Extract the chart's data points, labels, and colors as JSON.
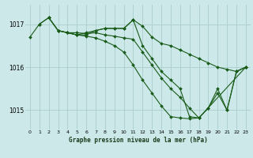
{
  "title": "Graphe pression niveau de la mer (hPa)",
  "bg_color": "#cce8e8",
  "grid_color": "#aacccc",
  "line_color": "#1a5c1a",
  "marker_color": "#1a5c1a",
  "xlim": [
    -0.5,
    23.5
  ],
  "ylim": [
    1014.55,
    1017.45
  ],
  "yticks": [
    1015,
    1016,
    1017
  ],
  "xticks": [
    0,
    1,
    2,
    3,
    4,
    5,
    6,
    7,
    8,
    9,
    10,
    11,
    12,
    13,
    14,
    15,
    16,
    17,
    18,
    19,
    20,
    21,
    22,
    23
  ],
  "lines": [
    {
      "x": [
        0,
        1,
        2,
        3,
        4,
        5,
        6,
        7,
        8,
        9,
        10,
        11,
        12,
        13,
        14,
        15,
        16,
        17,
        18,
        19,
        20,
        21,
        22,
        23
      ],
      "y": [
        1016.7,
        1017.0,
        1017.15,
        1016.85,
        1016.8,
        1016.75,
        1016.75,
        1016.85,
        1016.9,
        1016.9,
        1016.9,
        1017.1,
        1016.95,
        1016.7,
        1016.55,
        1016.5,
        1016.4,
        1016.3,
        1016.2,
        1016.1,
        1016.0,
        1015.95,
        1015.9,
        1016.0
      ]
    },
    {
      "x": [
        1,
        2,
        3,
        4,
        5,
        6,
        7,
        8,
        9,
        10,
        11,
        12,
        13,
        14,
        15,
        16,
        17,
        18,
        19,
        20,
        21,
        22,
        23
      ],
      "y": [
        1017.0,
        1017.15,
        1016.85,
        1016.8,
        1016.75,
        1016.8,
        1016.85,
        1016.9,
        1016.9,
        1016.9,
        1017.1,
        1016.5,
        1016.2,
        1015.9,
        1015.7,
        1015.5,
        1014.85,
        1014.82,
        1015.05,
        1015.4,
        1015.0,
        1015.9,
        1016.0
      ]
    },
    {
      "x": [
        2,
        3,
        4,
        5,
        6,
        7,
        8,
        9,
        10,
        11,
        12,
        13,
        14,
        15,
        16,
        17,
        18,
        19,
        20,
        21,
        22,
        23
      ],
      "y": [
        1017.15,
        1016.85,
        1016.8,
        1016.8,
        1016.78,
        1016.8,
        1016.75,
        1016.72,
        1016.68,
        1016.65,
        1016.35,
        1016.05,
        1015.75,
        1015.5,
        1015.3,
        1015.05,
        1014.82,
        1015.05,
        1015.5,
        1015.0,
        1015.9,
        1016.0
      ]
    },
    {
      "x": [
        3,
        4,
        5,
        6,
        7,
        8,
        9,
        10,
        11,
        12,
        13,
        14,
        15,
        16,
        17,
        18,
        23
      ],
      "y": [
        1016.85,
        1016.8,
        1016.75,
        1016.72,
        1016.68,
        1016.6,
        1016.5,
        1016.35,
        1016.05,
        1015.7,
        1015.4,
        1015.1,
        1014.85,
        1014.82,
        1014.8,
        1014.82,
        1016.0
      ]
    }
  ]
}
